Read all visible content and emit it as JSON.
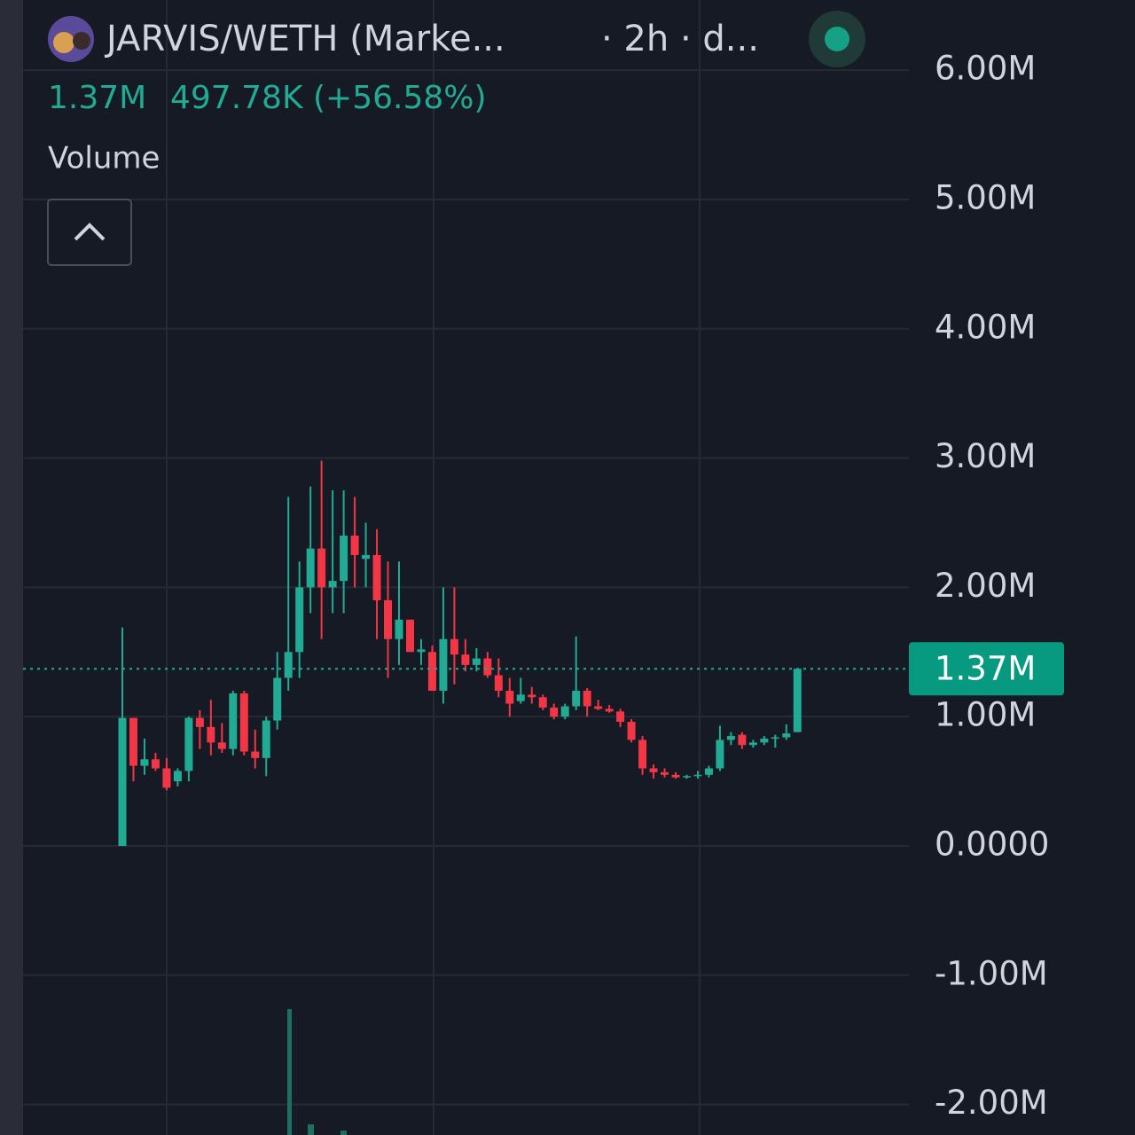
{
  "chart_data": {
    "type": "candlestick",
    "title": "JARVIS/WETH (Marke...",
    "interval": "· 2h · d...",
    "last_value": "1.37M",
    "change": "497.78K (+56.58%)",
    "indicator": "Volume",
    "last_price": {
      "value": 1370000,
      "label": "1.37M"
    },
    "up_color": "#22ab94",
    "down_color": "#f23645",
    "ylim": [
      -2236000,
      6543000
    ],
    "yticks": [
      {
        "value": 6000000,
        "label": "6.00M"
      },
      {
        "value": 5000000,
        "label": "5.00M"
      },
      {
        "value": 4000000,
        "label": "4.00M"
      },
      {
        "value": 3000000,
        "label": "3.00M"
      },
      {
        "value": 2000000,
        "label": "2.00M"
      },
      {
        "value": 1000000,
        "label": "1.00M"
      },
      {
        "value": 0,
        "label": "0.0000"
      },
      {
        "value": -1000000,
        "label": "-1.00M"
      },
      {
        "value": -2000000,
        "label": "-2.00M"
      }
    ],
    "grid": true,
    "open": [
      0,
      990000,
      620000,
      670000,
      600000,
      500000,
      580000,
      990000,
      920000,
      800000,
      750000,
      1180000,
      730000,
      680000,
      970000,
      1300000,
      1500000,
      2000000,
      2300000,
      2000000,
      2050000,
      2400000,
      2220000,
      2250000,
      1900000,
      1600000,
      1750000,
      1500000,
      1500000,
      1200000,
      1600000,
      1480000,
      1400000,
      1450000,
      1320000,
      1200000,
      1120000,
      1170000,
      1150000,
      1070000,
      1000000,
      1080000,
      1200000,
      1080000,
      1060000,
      1040000,
      960000,
      820000,
      600000,
      570000,
      550000,
      530000,
      540000,
      550000,
      600000,
      820000,
      860000,
      780000,
      800000,
      830000,
      840000,
      880000
    ],
    "high": [
      1690000,
      990000,
      830000,
      720000,
      680000,
      600000,
      1000000,
      1050000,
      1130000,
      950000,
      1200000,
      1200000,
      900000,
      1000000,
      1500000,
      2700000,
      2200000,
      2780000,
      2980000,
      2750000,
      2750000,
      2700000,
      2500000,
      2450000,
      2200000,
      2200000,
      1750000,
      1600000,
      1550000,
      2000000,
      2000000,
      1600000,
      1530000,
      1500000,
      1450000,
      1300000,
      1300000,
      1230000,
      1170000,
      1100000,
      1100000,
      1620000,
      1220000,
      1130000,
      1090000,
      1060000,
      980000,
      850000,
      630000,
      600000,
      570000,
      550000,
      580000,
      620000,
      930000,
      880000,
      880000,
      820000,
      850000,
      860000,
      940000,
      1370000
    ],
    "low": [
      0,
      500000,
      550000,
      580000,
      430000,
      460000,
      500000,
      750000,
      700000,
      720000,
      700000,
      700000,
      600000,
      540000,
      900000,
      1200000,
      1300000,
      1800000,
      1600000,
      1800000,
      1800000,
      2000000,
      2000000,
      1600000,
      1300000,
      1400000,
      1500000,
      1400000,
      1200000,
      1100000,
      1250000,
      1350000,
      1350000,
      1300000,
      1150000,
      1000000,
      1100000,
      1100000,
      1050000,
      980000,
      980000,
      1050000,
      1000000,
      1050000,
      1030000,
      920000,
      800000,
      550000,
      520000,
      530000,
      520000,
      520000,
      520000,
      530000,
      580000,
      780000,
      750000,
      760000,
      780000,
      760000,
      820000,
      880000
    ],
    "close": [
      990000,
      620000,
      670000,
      600000,
      450000,
      580000,
      990000,
      920000,
      800000,
      750000,
      1180000,
      730000,
      680000,
      970000,
      1300000,
      1500000,
      2000000,
      2300000,
      2000000,
      2050000,
      2400000,
      2250000,
      2250000,
      1900000,
      1600000,
      1750000,
      1500000,
      1520000,
      1200000,
      1600000,
      1480000,
      1400000,
      1450000,
      1320000,
      1200000,
      1100000,
      1170000,
      1150000,
      1070000,
      1000000,
      1080000,
      1200000,
      1080000,
      1060000,
      1040000,
      960000,
      820000,
      600000,
      570000,
      550000,
      530000,
      540000,
      550000,
      600000,
      820000,
      850000,
      780000,
      800000,
      830000,
      840000,
      870000,
      1370000
    ]
  }
}
